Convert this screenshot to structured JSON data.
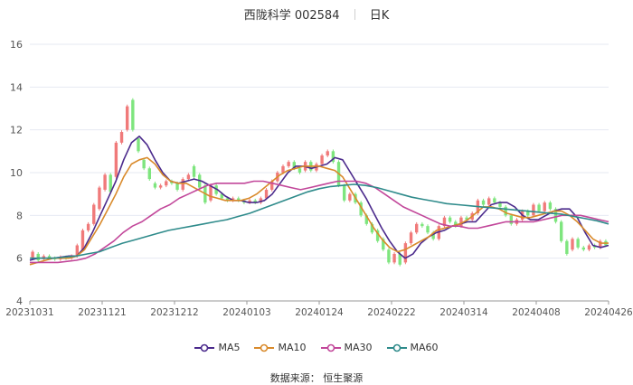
{
  "header": {
    "name": "西陇科学 002584",
    "period": "日K"
  },
  "source": "数据来源： 恒生聚源",
  "colors": {
    "up": "#f07a7a",
    "down": "#7ee57e",
    "MA5": "#4b2a8c",
    "MA10": "#d98a2b",
    "MA30": "#c2479a",
    "MA60": "#2f8b8b",
    "grid": "#e6e9f2",
    "axis": "#555555"
  },
  "chart_data": {
    "type": "candlestick",
    "title": "西陇科学 002584 日K",
    "ylim": [
      4,
      16
    ],
    "yticks": [
      4,
      6,
      8,
      10,
      12,
      14,
      16
    ],
    "x_ticks": [
      "20231031",
      "20231121",
      "20231212",
      "20240103",
      "20240124",
      "20240222",
      "20240314",
      "20240408",
      "20240426"
    ],
    "legend": [
      "MA5",
      "MA10",
      "MA30",
      "MA60"
    ],
    "legend_position": "bottom",
    "candles": [
      [
        6.0,
        6.3
      ],
      [
        6.2,
        5.9
      ],
      [
        5.95,
        6.1
      ],
      [
        6.1,
        6.0
      ],
      [
        6.0,
        5.95
      ],
      [
        5.95,
        6.05
      ],
      [
        6.05,
        6.0
      ],
      [
        6.0,
        6.1
      ],
      [
        6.1,
        6.6
      ],
      [
        6.4,
        7.3
      ],
      [
        7.3,
        7.6
      ],
      [
        7.6,
        8.5
      ],
      [
        8.3,
        9.3
      ],
      [
        9.2,
        9.9
      ],
      [
        9.9,
        9.1
      ],
      [
        9.8,
        11.4
      ],
      [
        11.4,
        11.9
      ],
      [
        12.0,
        13.1
      ],
      [
        13.4,
        12.0
      ],
      [
        11.6,
        11.0
      ],
      [
        10.6,
        10.2
      ],
      [
        10.2,
        9.7
      ],
      [
        9.5,
        9.3
      ],
      [
        9.3,
        9.4
      ],
      [
        9.4,
        9.6
      ],
      [
        9.6,
        9.5
      ],
      [
        9.5,
        9.2
      ],
      [
        9.2,
        9.7
      ],
      [
        9.7,
        9.9
      ],
      [
        10.3,
        9.8
      ],
      [
        9.9,
        9.3
      ],
      [
        9.4,
        8.6
      ],
      [
        8.7,
        9.4
      ],
      [
        9.4,
        9.0
      ],
      [
        9.0,
        8.8
      ],
      [
        8.8,
        8.7
      ],
      [
        8.7,
        8.8
      ],
      [
        8.8,
        8.7
      ],
      [
        8.7,
        8.6
      ],
      [
        8.6,
        8.7
      ],
      [
        8.7,
        8.6
      ],
      [
        8.6,
        8.8
      ],
      [
        8.8,
        9.2
      ],
      [
        9.2,
        9.6
      ],
      [
        9.6,
        10.0
      ],
      [
        10.0,
        10.3
      ],
      [
        10.3,
        10.5
      ],
      [
        10.5,
        10.2
      ],
      [
        10.2,
        10.0
      ],
      [
        10.1,
        10.5
      ],
      [
        10.5,
        10.1
      ],
      [
        10.1,
        10.4
      ],
      [
        10.4,
        10.8
      ],
      [
        10.8,
        11.0
      ],
      [
        11.0,
        10.5
      ],
      [
        10.5,
        9.4
      ],
      [
        9.4,
        8.7
      ],
      [
        8.7,
        9.0
      ],
      [
        9.0,
        8.6
      ],
      [
        8.6,
        8.0
      ],
      [
        8.0,
        7.6
      ],
      [
        7.6,
        7.2
      ],
      [
        7.3,
        6.8
      ],
      [
        6.9,
        6.4
      ],
      [
        6.4,
        5.8
      ],
      [
        5.8,
        6.2
      ],
      [
        6.2,
        5.7
      ],
      [
        5.8,
        6.7
      ],
      [
        6.7,
        7.2
      ],
      [
        7.2,
        7.6
      ],
      [
        7.6,
        7.5
      ],
      [
        7.5,
        7.2
      ],
      [
        7.2,
        6.9
      ],
      [
        6.9,
        7.5
      ],
      [
        7.5,
        7.9
      ],
      [
        7.9,
        7.7
      ],
      [
        7.7,
        7.5
      ],
      [
        7.5,
        7.9
      ],
      [
        7.9,
        7.8
      ],
      [
        7.8,
        8.1
      ],
      [
        8.1,
        8.7
      ],
      [
        8.7,
        8.5
      ],
      [
        8.5,
        8.8
      ],
      [
        8.8,
        8.6
      ],
      [
        8.6,
        8.4
      ],
      [
        8.4,
        8.0
      ],
      [
        8.0,
        7.6
      ],
      [
        7.6,
        7.8
      ],
      [
        7.8,
        8.2
      ],
      [
        8.2,
        8.0
      ],
      [
        8.0,
        8.5
      ],
      [
        8.5,
        8.2
      ],
      [
        8.2,
        8.6
      ],
      [
        8.6,
        8.3
      ],
      [
        8.3,
        7.7
      ],
      [
        7.7,
        6.8
      ],
      [
        6.8,
        6.2
      ],
      [
        6.4,
        6.9
      ],
      [
        6.9,
        6.5
      ],
      [
        6.5,
        6.4
      ],
      [
        6.4,
        6.6
      ],
      [
        6.6,
        6.5
      ],
      [
        6.5,
        6.8
      ],
      [
        6.8,
        6.6
      ]
    ],
    "ma": {
      "MA5": [
        5.9,
        6.0,
        6.0,
        6.0,
        6.05,
        6.1,
        6.1,
        6.5,
        7.2,
        8.0,
        8.8,
        9.6,
        10.6,
        11.4,
        11.7,
        11.3,
        10.6,
        10.0,
        9.6,
        9.5,
        9.6,
        9.7,
        9.6,
        9.4,
        9.2,
        8.9,
        8.7,
        8.7,
        8.6,
        8.6,
        8.7,
        9.0,
        9.5,
        10.0,
        10.3,
        10.3,
        10.2,
        10.3,
        10.4,
        10.7,
        10.6,
        10.0,
        9.4,
        8.8,
        8.1,
        7.4,
        6.8,
        6.3,
        6.0,
        6.2,
        6.7,
        7.0,
        7.2,
        7.3,
        7.5,
        7.6,
        7.7,
        7.7,
        8.1,
        8.5,
        8.6,
        8.6,
        8.4,
        8.0,
        7.8,
        7.8,
        8.0,
        8.2,
        8.3,
        8.3,
        7.9,
        7.2,
        6.6,
        6.5,
        6.6
      ],
      "MA10": [
        5.7,
        5.8,
        5.9,
        6.0,
        6.0,
        6.0,
        6.1,
        6.4,
        7.0,
        7.6,
        8.3,
        9.0,
        9.8,
        10.4,
        10.6,
        10.7,
        10.4,
        9.9,
        9.6,
        9.5,
        9.5,
        9.3,
        9.1,
        8.9,
        8.8,
        8.7,
        8.7,
        8.7,
        8.8,
        9.0,
        9.3,
        9.6,
        9.9,
        10.1,
        10.2,
        10.3,
        10.3,
        10.3,
        10.2,
        10.1,
        9.8,
        9.2,
        8.6,
        8.0,
        7.4,
        6.9,
        6.5,
        6.3,
        6.4,
        6.6,
        6.8,
        7.0,
        7.3,
        7.4,
        7.5,
        7.6,
        7.8,
        8.1,
        8.4,
        8.4,
        8.3,
        8.1,
        8.0,
        7.9,
        7.9,
        8.0,
        8.1,
        8.2,
        8.2,
        8.0,
        7.7,
        7.3,
        6.9,
        6.7,
        6.7
      ],
      "MA30": [
        5.8,
        5.8,
        5.8,
        5.8,
        5.85,
        5.9,
        6.0,
        6.2,
        6.5,
        6.8,
        7.2,
        7.5,
        7.7,
        8.0,
        8.3,
        8.5,
        8.8,
        9.0,
        9.2,
        9.4,
        9.5,
        9.5,
        9.5,
        9.5,
        9.6,
        9.6,
        9.5,
        9.4,
        9.3,
        9.2,
        9.3,
        9.4,
        9.5,
        9.6,
        9.6,
        9.6,
        9.5,
        9.3,
        9.0,
        8.7,
        8.4,
        8.2,
        8.0,
        7.8,
        7.6,
        7.5,
        7.5,
        7.4,
        7.4,
        7.5,
        7.6,
        7.7,
        7.7,
        7.7,
        7.7,
        7.8,
        7.9,
        8.0,
        8.0,
        8.0,
        7.9,
        7.8,
        7.7
      ],
      "MA60": [
        6.0,
        6.0,
        6.0,
        6.05,
        6.1,
        6.2,
        6.3,
        6.5,
        6.7,
        6.85,
        7.0,
        7.15,
        7.3,
        7.4,
        7.5,
        7.6,
        7.7,
        7.8,
        7.95,
        8.1,
        8.3,
        8.5,
        8.7,
        8.9,
        9.1,
        9.25,
        9.35,
        9.4,
        9.45,
        9.4,
        9.3,
        9.15,
        9.0,
        8.85,
        8.75,
        8.65,
        8.55,
        8.5,
        8.45,
        8.4,
        8.35,
        8.3,
        8.25,
        8.2,
        8.15,
        8.1,
        8.05,
        7.95,
        7.85,
        7.75,
        7.6
      ]
    }
  }
}
